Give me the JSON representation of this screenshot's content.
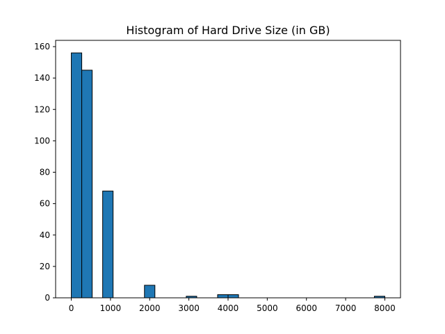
{
  "chart_data": {
    "type": "bar",
    "title": "Histogram of Hard Drive Size (in GB)",
    "xlabel": "",
    "ylabel": "",
    "bar_color": "#1f77b4",
    "edge_color": "#000000",
    "bin_width": 266.67,
    "bins": [
      {
        "x0": 0.0,
        "x1": 266.67,
        "count": 156
      },
      {
        "x0": 266.67,
        "x1": 533.33,
        "count": 145
      },
      {
        "x0": 800.0,
        "x1": 1066.67,
        "count": 68
      },
      {
        "x0": 1866.67,
        "x1": 2133.33,
        "count": 8
      },
      {
        "x0": 2933.33,
        "x1": 3200.0,
        "count": 1
      },
      {
        "x0": 3733.33,
        "x1": 4000.0,
        "count": 2
      },
      {
        "x0": 4000.0,
        "x1": 4266.67,
        "count": 2
      },
      {
        "x0": 7733.33,
        "x1": 8000.0,
        "count": 1
      }
    ],
    "xlim": [
      -400,
      8400
    ],
    "ylim": [
      0,
      164
    ],
    "xticks": [
      0,
      1000,
      2000,
      3000,
      4000,
      5000,
      6000,
      7000,
      8000
    ],
    "yticks": [
      0,
      20,
      40,
      60,
      80,
      100,
      120,
      140,
      160
    ],
    "grid": false,
    "legend": "none"
  }
}
